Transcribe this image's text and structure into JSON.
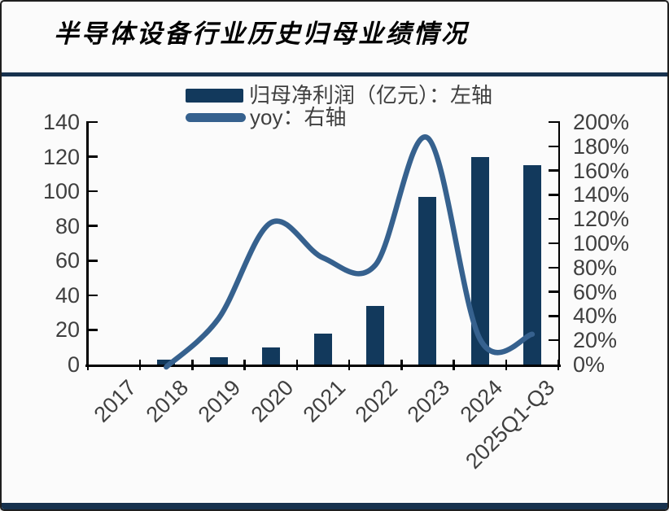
{
  "header": {
    "title": "半导体设备行业历史归母业绩情况"
  },
  "legend": {
    "items": [
      {
        "swatch": "bar-swatch",
        "label": "归母净利润（亿元）：左轴"
      },
      {
        "swatch": "line-swatch",
        "label": "yoy：右轴"
      }
    ]
  },
  "colors": {
    "bar": "#12395c",
    "line": "#36618e",
    "rule": "#17324e",
    "axis": "#000000",
    "label_text": "#3f3f3f",
    "background": "#fbfbfb"
  },
  "chart_data": {
    "type": "bar",
    "subtype": "bar+smoothed-line, dual axis",
    "title": "半导体设备行业历史归母业绩情况",
    "categories": [
      "2017",
      "2018",
      "2019",
      "2020",
      "2021",
      "2022",
      "2023",
      "2024",
      "2025Q1-Q3"
    ],
    "series": [
      {
        "name": "归母净利润（亿元）：左轴",
        "type": "bar",
        "axis": "left",
        "values": [
          0,
          3,
          4,
          10,
          18,
          34,
          97,
          120,
          115
        ]
      },
      {
        "name": "yoy：右轴",
        "type": "line",
        "axis": "right",
        "unit": "%",
        "smoothed": true,
        "values": [
          null,
          -2,
          38,
          117,
          88,
          82,
          187,
          21,
          25
        ]
      }
    ],
    "left_axis": {
      "min": 0,
      "max": 140,
      "step": 20,
      "tick_labels": [
        "0",
        "20",
        "40",
        "60",
        "80",
        "100",
        "120",
        "140"
      ]
    },
    "right_axis": {
      "min": 0,
      "max": 200,
      "step": 20,
      "unit": "%",
      "tick_labels": [
        "0%",
        "20%",
        "40%",
        "60%",
        "80%",
        "100%",
        "120%",
        "140%",
        "160%",
        "180%",
        "200%"
      ]
    },
    "grid": false,
    "legend_position": "top-center",
    "x_label_rotation_deg": -45
  }
}
